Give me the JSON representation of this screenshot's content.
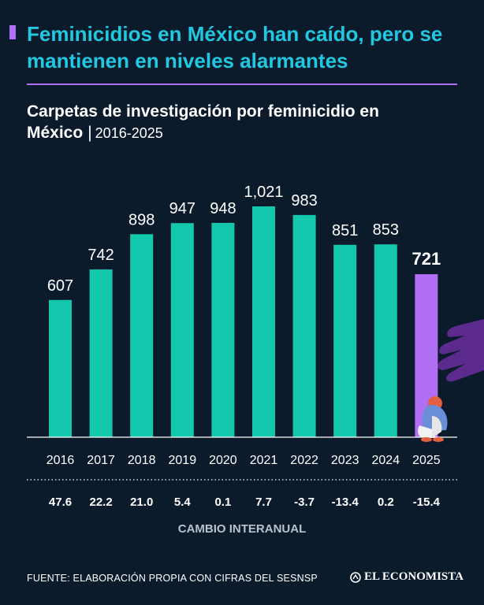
{
  "headline": "Feminicidios en México han caído, pero se mantienen en niveles alarmantes",
  "chart_title": {
    "main": "Carpetas de investigación por feminicidio en México",
    "separator": "|",
    "years": "2016-2025"
  },
  "chart_data": {
    "type": "bar",
    "title": "Carpetas de investigación por feminicidio en México",
    "subtitle": "2016-2025",
    "categories": [
      "2016",
      "2017",
      "2018",
      "2019",
      "2020",
      "2021",
      "2022",
      "2023",
      "2024",
      "2025"
    ],
    "values": [
      607,
      742,
      898,
      947,
      948,
      1021,
      983,
      851,
      853,
      721
    ],
    "value_labels": [
      "607",
      "742",
      "898",
      "947",
      "948",
      "1,021",
      "983",
      "851",
      "853",
      "721"
    ],
    "highlight_index": 9,
    "ylim": [
      0,
      1100
    ],
    "xlabel": "",
    "ylabel": "",
    "secondary_row": {
      "label": "CAMBIO INTERANUAL",
      "values": [
        47.6,
        22.2,
        21.0,
        5.4,
        0.1,
        7.7,
        -3.7,
        -13.4,
        0.2,
        -15.4
      ],
      "value_labels": [
        "47.6",
        "22.2",
        "21.0",
        "5.4",
        "0.1",
        "7.7",
        "-3.7",
        "-13.4",
        "0.2",
        "-15.4"
      ]
    }
  },
  "colors": {
    "bar": "#14c8ad",
    "highlight": "#b16ff5",
    "accent": "#b16ff5",
    "headline": "#22c7e0",
    "background": "#0b1b2b"
  },
  "source": "FUENTE: ELABORACIÓN PROPIA CON CIFRAS DEL SESNSP",
  "brand": "EL ECONOMISTA",
  "icons": [
    "woman-sitting-illustration",
    "purple-hand-illustration",
    "brand-logo-icon"
  ]
}
